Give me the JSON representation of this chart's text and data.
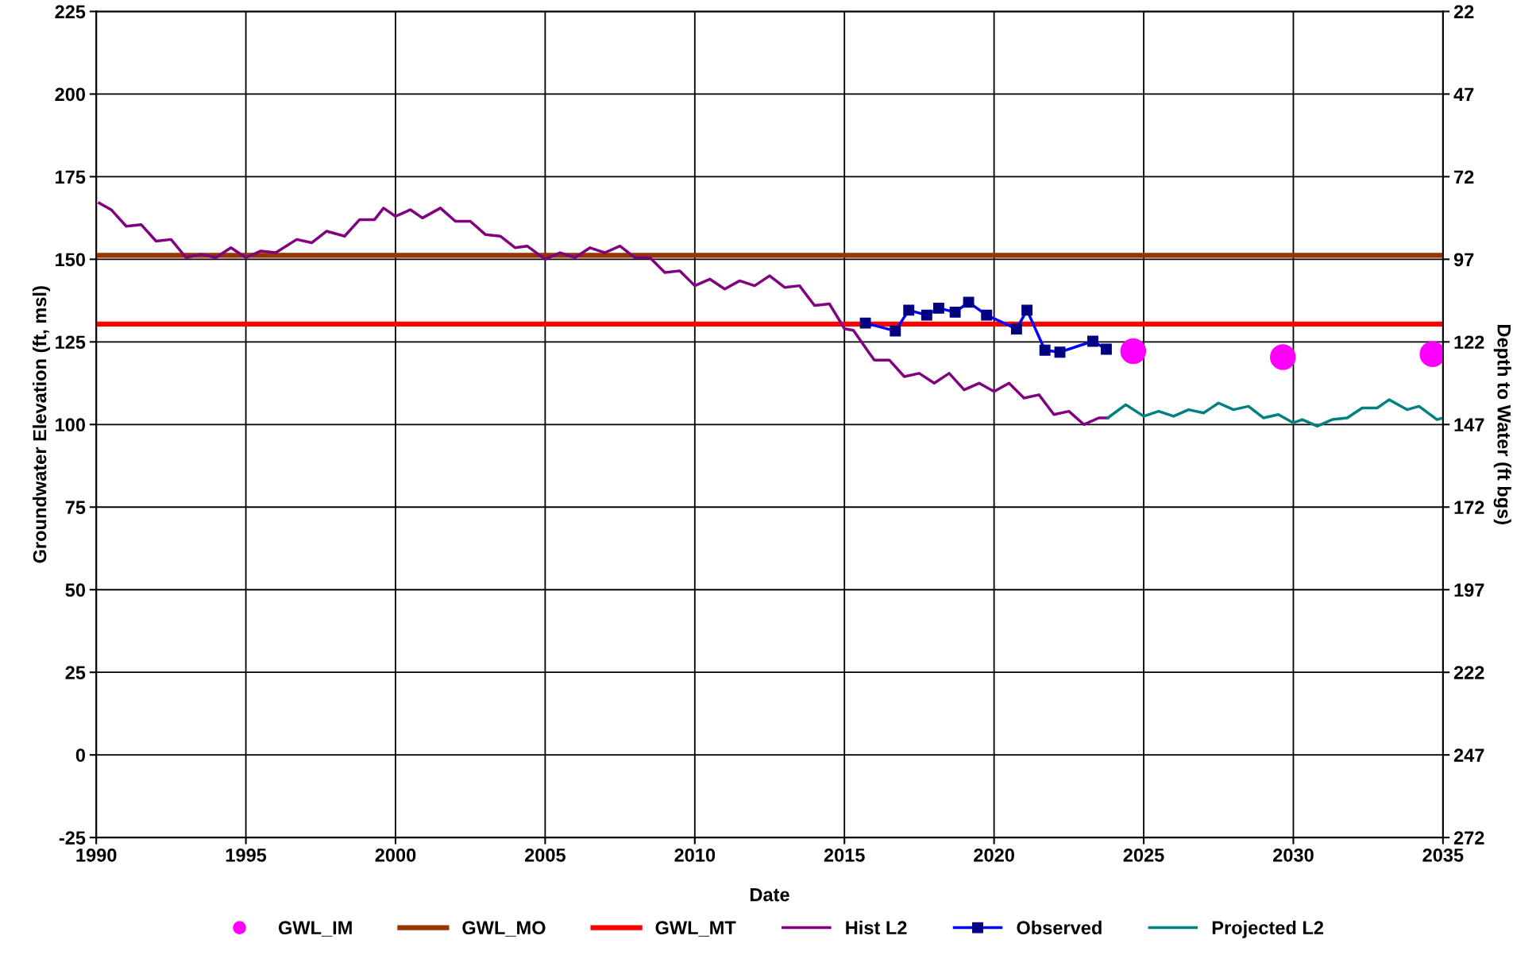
{
  "chart_data": {
    "type": "line",
    "xlabel": "Date",
    "ylabel": "Groundwater Elevation (ft, msl)",
    "y2label": "Depth to Water (ft bgs)",
    "xlim": [
      1990,
      2035
    ],
    "xticks": [
      1990,
      1995,
      2000,
      2005,
      2010,
      2015,
      2020,
      2025,
      2030,
      2035
    ],
    "ylim": [
      -25,
      225
    ],
    "yticks": [
      -25,
      0,
      25,
      50,
      75,
      100,
      125,
      150,
      175,
      200,
      225
    ],
    "y2lim": [
      272,
      22
    ],
    "y2ticks": [
      22,
      47,
      72,
      97,
      122,
      147,
      172,
      197,
      222,
      247,
      272
    ],
    "grid": true,
    "legend": "bottom",
    "series": [
      {
        "name": "GWL_IM",
        "type": "scatter",
        "marker": "circle",
        "color": "#ff00ff",
        "x": [
          2024.65,
          2029.65,
          2034.65
        ],
        "values": [
          122.2,
          120.4,
          121.3
        ]
      },
      {
        "name": "GWL_MO",
        "marker": "none",
        "color": "#993300",
        "x": [
          1990,
          2035
        ],
        "values": [
          151.2,
          151.2
        ]
      },
      {
        "name": "GWL_MT",
        "marker": "none",
        "color": "#ff0000",
        "x": [
          1990,
          2035
        ],
        "values": [
          130.4,
          130.4
        ]
      },
      {
        "name": "Hist L2",
        "marker": "none",
        "color": "#800080",
        "x": [
          1990.1,
          1990.5,
          1991,
          1991.5,
          1992,
          1992.5,
          1993,
          1993.5,
          1994,
          1994.5,
          1995,
          1995.5,
          1996,
          1996.7,
          1997.2,
          1997.7,
          1998.3,
          1998.8,
          1999.3,
          1999.6,
          2000,
          2000.5,
          2000.9,
          2001.5,
          2002,
          2002.5,
          2003,
          2003.5,
          2004,
          2004.4,
          2005,
          2005.5,
          2006,
          2006.5,
          2007,
          2007.5,
          2008,
          2008.5,
          2009,
          2009.5,
          2010,
          2010.5,
          2011,
          2011.5,
          2012,
          2012.5,
          2013,
          2013.5,
          2014,
          2014.5,
          2015,
          2015.3,
          2015.8,
          2016,
          2016.5,
          2017,
          2017.5,
          2018,
          2018.5,
          2019,
          2019.5,
          2020,
          2020.5,
          2021,
          2021.5,
          2022,
          2022.5,
          2023,
          2023.5,
          2023.8
        ],
        "values": [
          167,
          165,
          160,
          160.5,
          155.5,
          156,
          150.5,
          151.5,
          150.5,
          153.5,
          150.5,
          152.5,
          152,
          156,
          155,
          158.5,
          157,
          162,
          162,
          165.5,
          163,
          165,
          162.5,
          165.5,
          161.5,
          161.5,
          157.5,
          157,
          153.5,
          154,
          150,
          152,
          150.5,
          153.5,
          152,
          154,
          150.5,
          150.5,
          146,
          146.5,
          142,
          144,
          141,
          143.5,
          142,
          145,
          141.5,
          142,
          136,
          136.5,
          129,
          128.5,
          122,
          119.5,
          119.5,
          114.5,
          115.5,
          112.5,
          115.5,
          110.5,
          112.5,
          110,
          112.5,
          108,
          109,
          103,
          104,
          100,
          102,
          102
        ]
      },
      {
        "name": "Observed",
        "marker": "square",
        "color": "#0000ff",
        "x": [
          2015.7,
          2016.7,
          2017.15,
          2017.75,
          2018.15,
          2018.7,
          2019.15,
          2019.75,
          2020.75,
          2021.1,
          2021.7,
          2022.2,
          2023.3,
          2023.75
        ],
        "values": [
          130.7,
          128.3,
          134.6,
          133.1,
          135.2,
          134,
          137,
          133.1,
          128.9,
          134.6,
          122.5,
          121.9,
          125.2,
          122.8
        ]
      },
      {
        "name": "Projected L2",
        "marker": "none",
        "color": "#008080",
        "x": [
          2023.8,
          2024.4,
          2025,
          2025.5,
          2026,
          2026.5,
          2027,
          2027.5,
          2028,
          2028.5,
          2029,
          2029.5,
          2030,
          2030.3,
          2030.8,
          2031.3,
          2031.8,
          2032.3,
          2032.8,
          2033.2,
          2033.8,
          2034.2,
          2034.8,
          2035
        ],
        "values": [
          102,
          106,
          102.5,
          104,
          102.5,
          104.5,
          103.5,
          106.5,
          104.5,
          105.5,
          102,
          103,
          100.5,
          101.5,
          99.5,
          101.5,
          102,
          105,
          105,
          107.5,
          104.5,
          105.5,
          101.5,
          102
        ]
      }
    ]
  }
}
